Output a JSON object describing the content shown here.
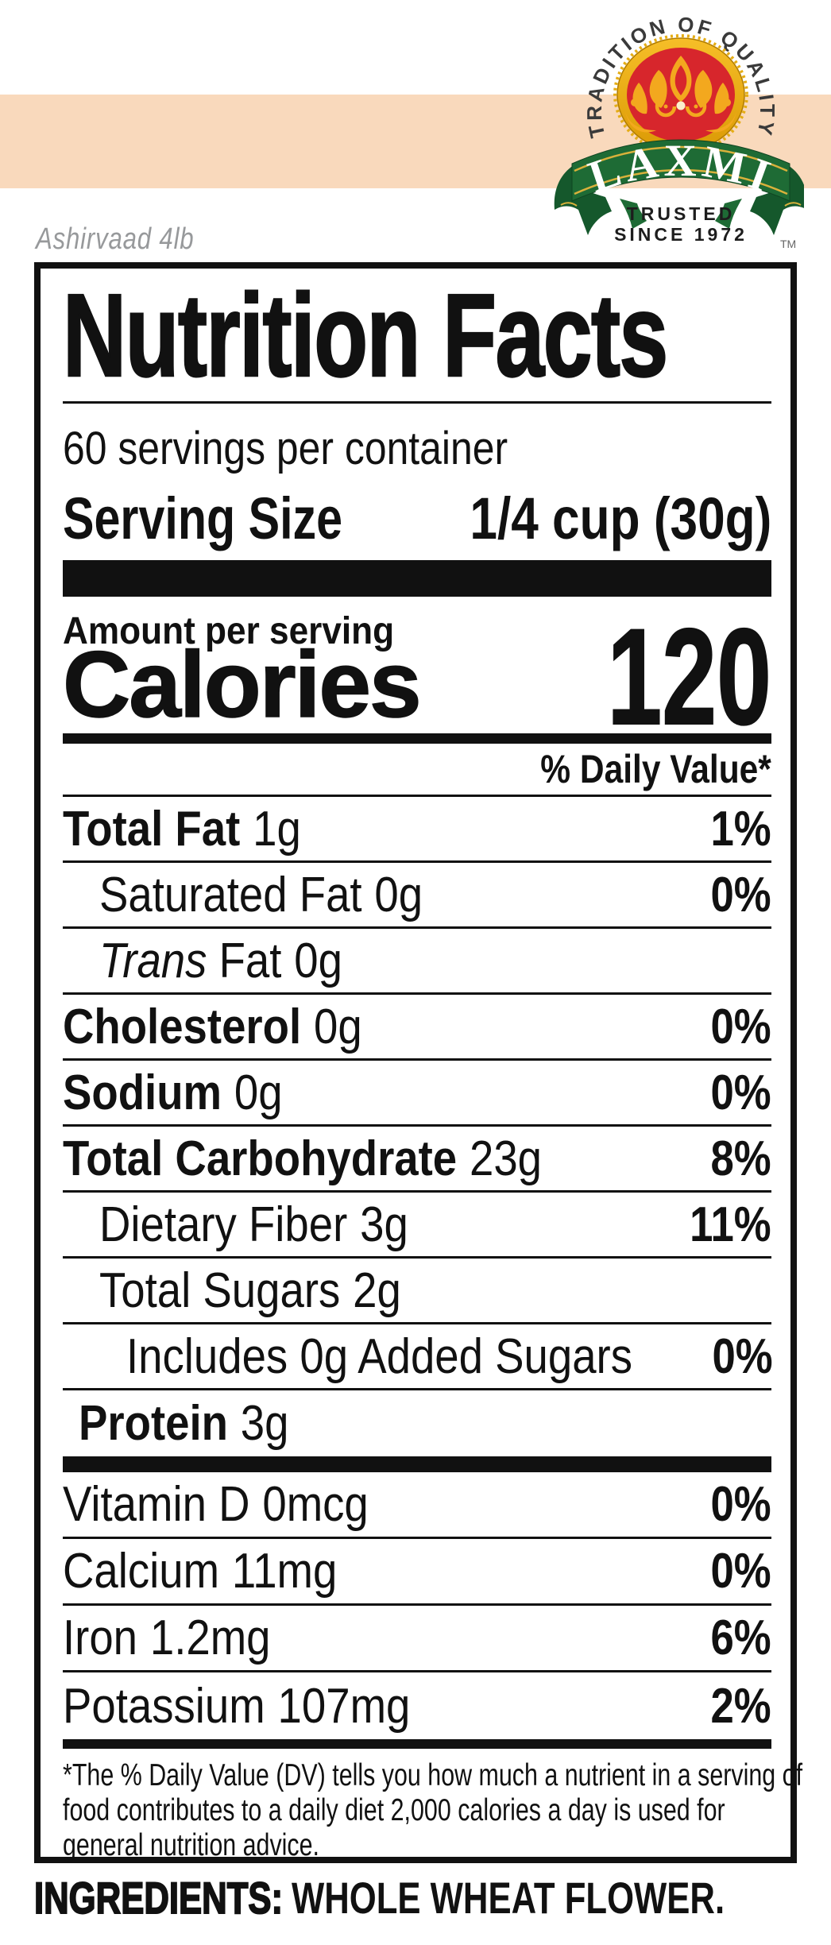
{
  "page": {
    "background": "#ffffff",
    "band_color": "#F9D9BC",
    "text_color": "#111111"
  },
  "product_note": "Ashirvaad 4lb",
  "logo": {
    "arc_text": "TRADITION OF QUALITY",
    "brand": "LAXMI",
    "trusted_line1": "TRUSTED",
    "trusted_line2": "SINCE 1972",
    "trademark": "TM",
    "colors": {
      "red": "#D7262C",
      "gold": "#F3A81E",
      "gold_dark": "#C98F00",
      "green": "#1E6B35",
      "green_dark": "#15582C",
      "pinstripe": "#D9B13B",
      "cream_dot": "#FBEECD"
    }
  },
  "label": {
    "title": "Nutrition Facts",
    "servings_per_container": "60 servings per container",
    "serving_size_label": "Serving Size",
    "serving_size_value": "1/4 cup (30g)",
    "amount_per_serving": "Amount per serving",
    "calories_label": "Calories",
    "calories_value": "120",
    "daily_value_header": "% Daily Value*",
    "rows": [
      {
        "name": "Total Fat",
        "amount": "1g",
        "dv": "1%",
        "bold": true,
        "indent": 0
      },
      {
        "name": "Saturated Fat",
        "amount": "0g",
        "dv": "0%",
        "bold": false,
        "indent": 1
      },
      {
        "name": "Fat",
        "italic_prefix": "Trans",
        "amount": "0g",
        "dv": "",
        "bold": false,
        "indent": 1
      },
      {
        "name": "Cholesterol",
        "amount": "0g",
        "dv": "0%",
        "bold": true,
        "indent": 0
      },
      {
        "name": "Sodium",
        "amount": "0g",
        "dv": "0%",
        "bold": true,
        "indent": 0
      },
      {
        "name": "Total Carbohydrate",
        "amount": "23g",
        "dv": "8%",
        "bold": true,
        "indent": 0
      },
      {
        "name": "Dietary Fiber",
        "amount": "3g",
        "dv": "11%",
        "bold": false,
        "indent": 1
      },
      {
        "name": "Total Sugars",
        "amount": "2g",
        "dv": "",
        "bold": false,
        "indent": 1
      },
      {
        "name": "Includes 0g Added Sugars",
        "amount": "",
        "dv": "0%",
        "bold": false,
        "indent": 2
      },
      {
        "name": "Protein",
        "amount": "3g",
        "dv": "",
        "bold": true,
        "indent": 3
      }
    ],
    "vitamin_rows": [
      {
        "name": "Vitamin D",
        "amount": "0mcg",
        "dv": "0%"
      },
      {
        "name": "Calcium",
        "amount": "11mg",
        "dv": "0%"
      },
      {
        "name": "Iron",
        "amount": "1.2mg",
        "dv": "6%"
      },
      {
        "name": "Potassium",
        "amount": "107mg",
        "dv": "2%"
      }
    ],
    "footnote_lines": [
      "*The % Daily Value (DV) tells you how much a nutrient in a serving of",
      "food contributes to a daily diet 2,000 calories a day is used for",
      "general nutrition advice."
    ]
  },
  "ingredients": {
    "label": "INGREDIENTS:",
    "value": "WHOLE WHEAT FLOWER."
  }
}
